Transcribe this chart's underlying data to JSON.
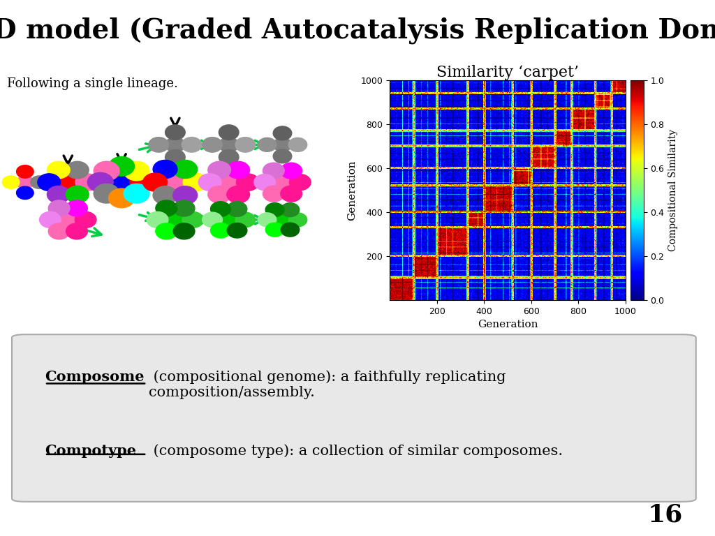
{
  "title": "GARD model (Graded Autocatalysis Replication Domain)",
  "title_bg": "#CC88FF",
  "title_color": "#000000",
  "title_fontsize": 28,
  "slide_bg": "#FFFFFF",
  "lineage_text": "Following a single lineage.",
  "carpet_title": "Similarity ‘carpet’",
  "carpet_xlabel": "Generation",
  "carpet_ylabel": "Generation",
  "carpet_cbar_label": "Compositional Similarity",
  "carpet_xticks": [
    200,
    400,
    600,
    800,
    1000
  ],
  "carpet_yticks": [
    200,
    400,
    600,
    800,
    1000
  ],
  "box_bg": "#E8E8E8",
  "box_text1_bold": "Composome",
  "box_text1_rest": " (compositional genome): a faithfully replicating\ncomposition/assembly.",
  "box_text2_bold": "Compotype",
  "box_text2_rest": " (composome type): a collection of similar composomes.",
  "page_number": "16",
  "arrow_color": "#00CC44",
  "down_arrow_color": "#000000",
  "colors_small": [
    "#FF69B4",
    "#808080",
    "#FF0000",
    "#FFFF00",
    "#0000FF"
  ],
  "colors_med1": [
    "#FF0000",
    "#FF69B4",
    "#808080",
    "#FFFF00",
    "#0000FF",
    "#9932CC",
    "#00CC00"
  ],
  "colors_large1": [
    "#0000FF",
    "#FF0000",
    "#FFFF00",
    "#00CC00",
    "#FF69B4",
    "#9932CC",
    "#808080",
    "#FF8C00",
    "#00FFFF"
  ],
  "colors_large2": [
    "#FF69B4",
    "#FFFF00",
    "#00CC00",
    "#0000FF",
    "#FF0000",
    "#808080",
    "#9932CC"
  ],
  "colors_gray1": [
    "#808080",
    "#A0A0A0",
    "#606060",
    "#909090",
    "#707070"
  ],
  "colors_pink1": [
    "#FF69B4",
    "#FF1493",
    "#FF00FF",
    "#DA70D6",
    "#EE82EE",
    "#FF69B4",
    "#FF1493"
  ],
  "colors_green1": [
    "#00CC00",
    "#32CD32",
    "#228B22",
    "#008000",
    "#90EE90",
    "#00FF00",
    "#006400"
  ]
}
